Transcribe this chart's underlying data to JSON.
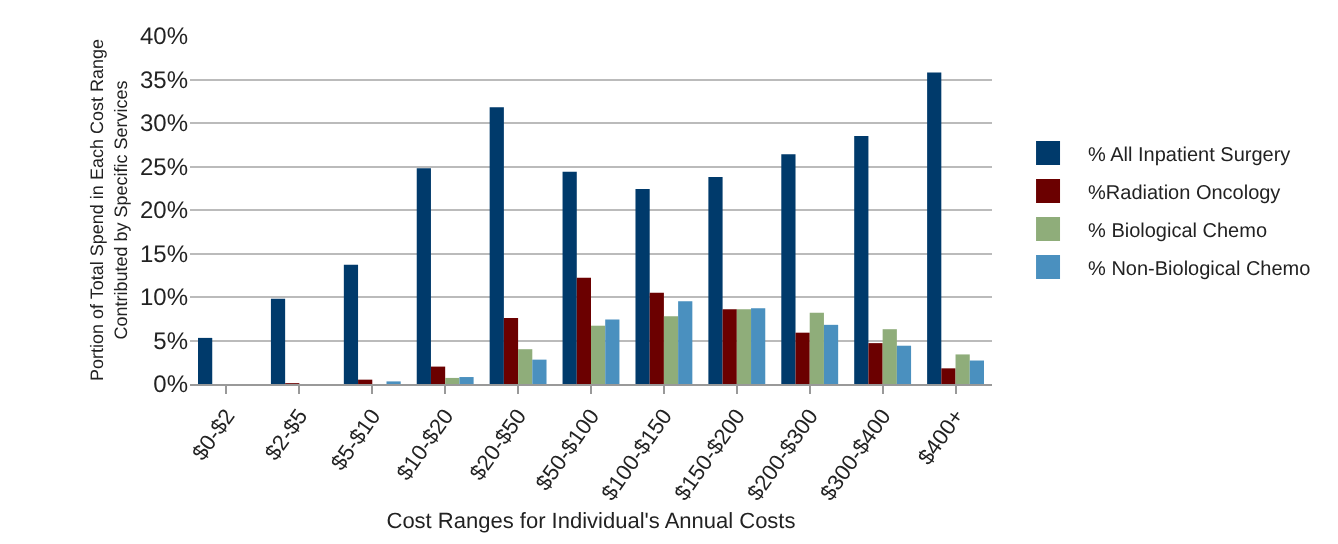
{
  "chart_data": {
    "type": "bar",
    "xlabel": "Cost Ranges for Individual's Annual Costs",
    "ylabel": "Portion of Total Spend in Each Cost Range Contributed by Specific Services",
    "categories": [
      "$0-$2",
      "$2-$5",
      "$5-$10",
      "$10-$20",
      "$20-$50",
      "$50-$100",
      "$100-$150",
      "$150-$200",
      "$200-$300",
      "$300-$400",
      "$400+"
    ],
    "series": [
      {
        "name": "% All Inpatient Surgery",
        "color": "#003a6b",
        "values": [
          5.3,
          9.8,
          13.7,
          24.8,
          31.8,
          24.4,
          22.4,
          23.8,
          26.4,
          28.5,
          35.8
        ]
      },
      {
        "name": "%Radiation Oncology",
        "color": "#6b0000",
        "values": [
          0,
          0.1,
          0.5,
          2,
          7.6,
          12.2,
          10.5,
          8.6,
          5.9,
          4.7,
          1.8
        ]
      },
      {
        "name": "% Biological Chemo",
        "color": "#8fad7a",
        "values": [
          0,
          0,
          0,
          0.7,
          4,
          6.7,
          7.8,
          8.6,
          8.2,
          6.3,
          3.4
        ]
      },
      {
        "name": "% Non-Biological Chemo",
        "color": "#4a90bf",
        "values": [
          0,
          0,
          0.3,
          0.8,
          2.8,
          7.4,
          9.5,
          8.7,
          6.8,
          4.4,
          2.7
        ]
      }
    ],
    "ylim": [
      0,
      40
    ],
    "yticks": [
      {
        "value": 0,
        "label": "0%"
      },
      {
        "value": 5,
        "label": "5%"
      },
      {
        "value": 10,
        "label": "10%"
      },
      {
        "value": 15,
        "label": "15%"
      },
      {
        "value": 20,
        "label": "20%"
      },
      {
        "value": 25,
        "label": "25%"
      },
      {
        "value": 30,
        "label": "30%"
      },
      {
        "value": 35,
        "label": "35%"
      },
      {
        "value": 40,
        "label": "40%"
      }
    ],
    "grid": "y",
    "legend": "right"
  }
}
